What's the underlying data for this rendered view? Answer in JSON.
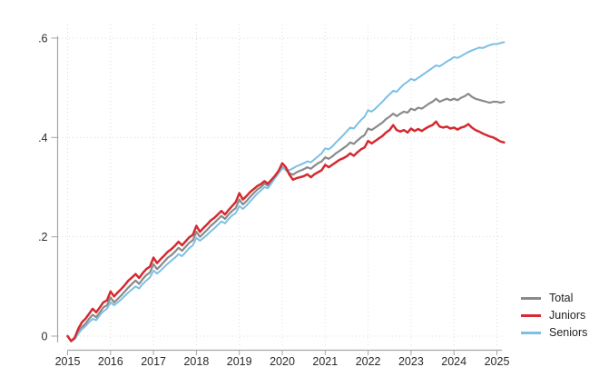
{
  "chart_data": {
    "type": "line",
    "title": "",
    "xlabel": "",
    "ylabel": "",
    "grid": "dotted",
    "legend_position": "right-bottom-outside",
    "x_ticks": [
      "2015",
      "2016",
      "2017",
      "2018",
      "2019",
      "2020",
      "2021",
      "2022",
      "2023",
      "2024",
      "2025"
    ],
    "y_ticks": [
      {
        "value": 0.0,
        "label": "0"
      },
      {
        "value": 0.2,
        "label": ".2"
      },
      {
        "value": 0.4,
        "label": ".4"
      },
      {
        "value": 0.6,
        "label": ".6"
      }
    ],
    "xlim": [
      2015,
      2025.25
    ],
    "ylim": [
      -0.03,
      0.63
    ],
    "x_start_year": 2015,
    "points_per_year": 12,
    "colors": {
      "axis": "#a6a6a6",
      "gridline": "#dcdcdc",
      "tick_text": "#2b2b2b"
    },
    "series": [
      {
        "name": "Total",
        "color": "#8a8a8a",
        "width": 2.2,
        "values": [
          0.0,
          -0.01,
          -0.005,
          0.008,
          0.018,
          0.025,
          0.035,
          0.043,
          0.038,
          0.048,
          0.058,
          0.062,
          0.078,
          0.068,
          0.075,
          0.082,
          0.09,
          0.098,
          0.105,
          0.112,
          0.105,
          0.115,
          0.123,
          0.128,
          0.145,
          0.135,
          0.142,
          0.15,
          0.158,
          0.163,
          0.17,
          0.178,
          0.172,
          0.18,
          0.188,
          0.193,
          0.21,
          0.2,
          0.207,
          0.214,
          0.222,
          0.228,
          0.235,
          0.242,
          0.236,
          0.245,
          0.252,
          0.258,
          0.275,
          0.265,
          0.272,
          0.28,
          0.288,
          0.295,
          0.3,
          0.307,
          0.303,
          0.312,
          0.32,
          0.33,
          0.34,
          0.335,
          0.328,
          0.325,
          0.33,
          0.333,
          0.336,
          0.34,
          0.337,
          0.343,
          0.348,
          0.352,
          0.36,
          0.357,
          0.362,
          0.368,
          0.373,
          0.378,
          0.383,
          0.39,
          0.387,
          0.394,
          0.4,
          0.405,
          0.418,
          0.415,
          0.42,
          0.425,
          0.43,
          0.437,
          0.442,
          0.448,
          0.443,
          0.448,
          0.452,
          0.45,
          0.458,
          0.455,
          0.46,
          0.458,
          0.463,
          0.468,
          0.472,
          0.478,
          0.472,
          0.475,
          0.478,
          0.475,
          0.478,
          0.475,
          0.48,
          0.483,
          0.488,
          0.482,
          0.478,
          0.476,
          0.474,
          0.472,
          0.47,
          0.472,
          0.472,
          0.47,
          0.472
        ]
      },
      {
        "name": "Juniors",
        "color": "#d42a30",
        "width": 2.5,
        "values": [
          0.0,
          -0.01,
          -0.003,
          0.015,
          0.028,
          0.035,
          0.045,
          0.055,
          0.048,
          0.058,
          0.068,
          0.072,
          0.09,
          0.08,
          0.088,
          0.095,
          0.103,
          0.112,
          0.118,
          0.125,
          0.117,
          0.127,
          0.135,
          0.14,
          0.158,
          0.147,
          0.155,
          0.162,
          0.17,
          0.175,
          0.182,
          0.19,
          0.183,
          0.191,
          0.199,
          0.204,
          0.222,
          0.21,
          0.218,
          0.225,
          0.233,
          0.238,
          0.245,
          0.252,
          0.245,
          0.254,
          0.262,
          0.27,
          0.288,
          0.275,
          0.282,
          0.29,
          0.296,
          0.302,
          0.306,
          0.312,
          0.307,
          0.315,
          0.323,
          0.333,
          0.348,
          0.34,
          0.325,
          0.315,
          0.318,
          0.32,
          0.322,
          0.326,
          0.32,
          0.326,
          0.33,
          0.334,
          0.345,
          0.34,
          0.345,
          0.35,
          0.355,
          0.358,
          0.362,
          0.368,
          0.363,
          0.37,
          0.376,
          0.38,
          0.393,
          0.388,
          0.393,
          0.398,
          0.403,
          0.41,
          0.415,
          0.425,
          0.415,
          0.412,
          0.415,
          0.41,
          0.418,
          0.413,
          0.417,
          0.413,
          0.418,
          0.422,
          0.425,
          0.432,
          0.422,
          0.42,
          0.422,
          0.418,
          0.42,
          0.416,
          0.42,
          0.422,
          0.427,
          0.42,
          0.415,
          0.412,
          0.408,
          0.405,
          0.402,
          0.4,
          0.396,
          0.392,
          0.39
        ]
      },
      {
        "name": "Seniors",
        "color": "#7cc0e4",
        "width": 2.0,
        "values": [
          0.0,
          -0.01,
          -0.006,
          0.005,
          0.014,
          0.02,
          0.028,
          0.035,
          0.032,
          0.042,
          0.05,
          0.055,
          0.068,
          0.062,
          0.068,
          0.074,
          0.081,
          0.088,
          0.094,
          0.1,
          0.096,
          0.105,
          0.112,
          0.118,
          0.132,
          0.126,
          0.132,
          0.139,
          0.146,
          0.152,
          0.158,
          0.165,
          0.161,
          0.169,
          0.177,
          0.183,
          0.198,
          0.192,
          0.198,
          0.204,
          0.211,
          0.217,
          0.224,
          0.231,
          0.227,
          0.236,
          0.243,
          0.248,
          0.262,
          0.256,
          0.263,
          0.271,
          0.279,
          0.287,
          0.293,
          0.3,
          0.298,
          0.308,
          0.318,
          0.328,
          0.338,
          0.336,
          0.334,
          0.338,
          0.342,
          0.345,
          0.348,
          0.352,
          0.35,
          0.356,
          0.362,
          0.368,
          0.378,
          0.376,
          0.382,
          0.39,
          0.397,
          0.404,
          0.412,
          0.42,
          0.418,
          0.427,
          0.435,
          0.442,
          0.455,
          0.452,
          0.458,
          0.465,
          0.472,
          0.48,
          0.487,
          0.494,
          0.492,
          0.5,
          0.507,
          0.512,
          0.518,
          0.515,
          0.52,
          0.525,
          0.53,
          0.535,
          0.54,
          0.545,
          0.543,
          0.548,
          0.553,
          0.557,
          0.562,
          0.56,
          0.564,
          0.568,
          0.572,
          0.575,
          0.578,
          0.581,
          0.58,
          0.583,
          0.586,
          0.588,
          0.588,
          0.59,
          0.592
        ]
      }
    ]
  }
}
